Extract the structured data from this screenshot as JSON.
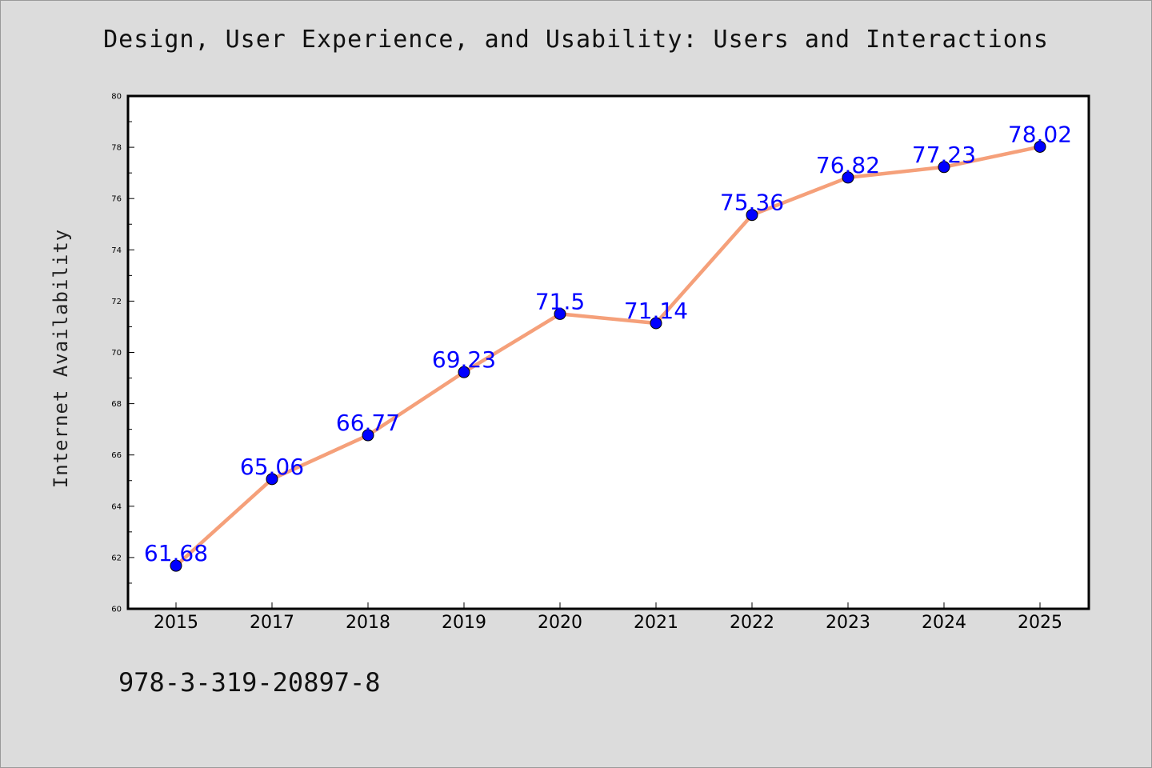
{
  "chart_data": {
    "type": "line",
    "title": "Design, User Experience, and Usability: Users and Interactions",
    "xlabel": "",
    "ylabel": "Internet Availability",
    "categories": [
      "2015",
      "2017",
      "2018",
      "2019",
      "2020",
      "2021",
      "2022",
      "2023",
      "2024",
      "2025"
    ],
    "series": [
      {
        "values": [
          61.68,
          65.06,
          66.77,
          69.23,
          71.5,
          71.14,
          75.36,
          76.82,
          77.23,
          78.02
        ],
        "data_labels": [
          "61.68",
          "65.06",
          "66.77",
          "69.23",
          "71.5",
          "71.14",
          "75.36",
          "76.82",
          "77.23",
          "78.02"
        ],
        "line_color": "#f5a07a",
        "marker_color": "#0000ff"
      }
    ],
    "ylim": [
      60,
      80
    ],
    "yticks": [
      60,
      62,
      64,
      66,
      68,
      70,
      72,
      74,
      76,
      78,
      80
    ],
    "ytick_labels": [
      "60",
      "62",
      "64",
      "66",
      "68",
      "70",
      "72",
      "74",
      "76",
      "78",
      "80"
    ],
    "grid": false,
    "legend": "none",
    "background_color": "#dcdcdc",
    "plot_background_color": "#ffffff",
    "label_color": "#0000ff"
  },
  "footer": {
    "text": "978-3-319-20897-8"
  }
}
